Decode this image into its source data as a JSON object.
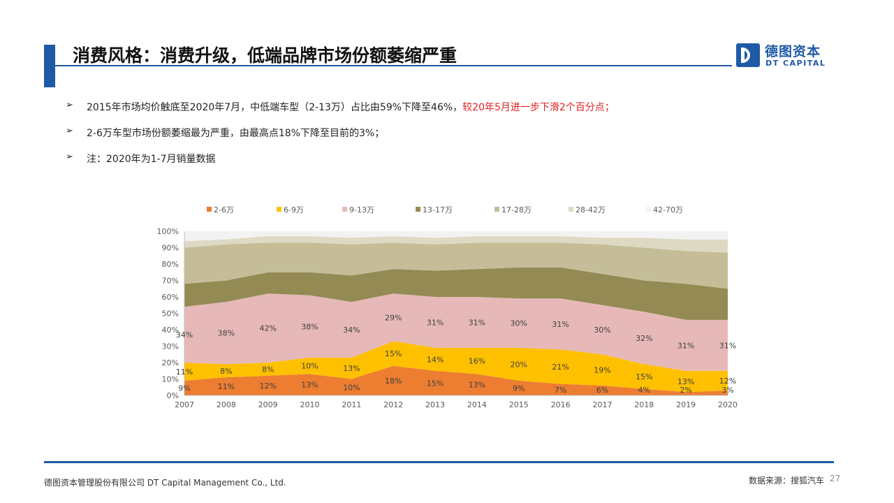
{
  "header": {
    "title": "消费风格：消费升级，低端品牌市场份额萎缩严重",
    "logo_cn": "德图资本",
    "logo_en": "DT CAPITAL"
  },
  "bullets": [
    {
      "text": "2015年市场均价触底至2020年7月，中低端车型（2-13万）占比由59%下降至46%，",
      "highlight": "较20年5月进一步下滑2个百分点；"
    },
    {
      "text": "2-6万车型市场份额萎缩最为严重，由最高点18%下降至目前的3%；",
      "highlight": ""
    },
    {
      "text": "注：2020年为1-7月销量数据",
      "highlight": ""
    }
  ],
  "chart_data": {
    "type": "area",
    "stacked": true,
    "categories": [
      "2007",
      "2008",
      "2009",
      "2010",
      "2011",
      "2012",
      "2013",
      "2014",
      "2015",
      "2016",
      "2017",
      "2018",
      "2019",
      "2020"
    ],
    "ylim": [
      0,
      100
    ],
    "yticks": [
      "0%",
      "10%",
      "20%",
      "30%",
      "40%",
      "50%",
      "60%",
      "70%",
      "80%",
      "90%",
      "100%"
    ],
    "legend_position": "top",
    "series": [
      {
        "name": "2-6万",
        "color": "#ed7d31",
        "values": [
          9,
          11,
          12,
          13,
          10,
          18,
          15,
          13,
          9,
          7,
          6,
          4,
          2,
          3
        ],
        "labels": [
          "9%",
          "11%",
          "12%",
          "13%",
          "10%",
          "18%",
          "15%",
          "13%",
          "9%",
          "7%",
          "6%",
          "4%",
          "2%",
          "3%"
        ]
      },
      {
        "name": "6-9万",
        "color": "#ffc000",
        "values": [
          11,
          8,
          8,
          10,
          13,
          15,
          14,
          16,
          20,
          21,
          19,
          15,
          13,
          12
        ],
        "labels": [
          "11%",
          "8%",
          "8%",
          "10%",
          "13%",
          "15%",
          "14%",
          "16%",
          "20%",
          "21%",
          "19%",
          "15%",
          "13%",
          "12%"
        ]
      },
      {
        "name": "9-13万",
        "color": "#e6b9b8",
        "values": [
          34,
          38,
          42,
          38,
          34,
          29,
          31,
          31,
          30,
          31,
          30,
          32,
          31,
          31
        ],
        "labels": [
          "34%",
          "38%",
          "42%",
          "38%",
          "34%",
          "29%",
          "31%",
          "31%",
          "30%",
          "31%",
          "30%",
          "32%",
          "31%",
          "31%"
        ]
      },
      {
        "name": "13-17万",
        "color": "#948a54",
        "values": [
          14,
          13,
          13,
          14,
          16,
          15,
          16,
          17,
          19,
          19,
          19,
          19,
          22,
          19
        ],
        "labels": []
      },
      {
        "name": "17-28万",
        "color": "#c4bd97",
        "values": [
          22,
          22,
          18,
          18,
          19,
          16,
          16,
          16,
          15,
          15,
          18,
          20,
          20,
          22
        ],
        "labels": []
      },
      {
        "name": "28-42万",
        "color": "#ddd9c3",
        "values": [
          4,
          3,
          4,
          4,
          4,
          4,
          4,
          4,
          4,
          4,
          4,
          6,
          7,
          8
        ],
        "labels": []
      },
      {
        "name": "42-70万",
        "color": "#f2f2f2",
        "values": [
          6,
          5,
          3,
          3,
          4,
          3,
          4,
          3,
          3,
          3,
          4,
          4,
          5,
          5
        ],
        "labels": []
      }
    ]
  },
  "footer": {
    "company": "德图资本管理股份有限公司  DT Capital Management Co., Ltd.",
    "source": "数据来源：搜狐汽车",
    "page": "27"
  }
}
